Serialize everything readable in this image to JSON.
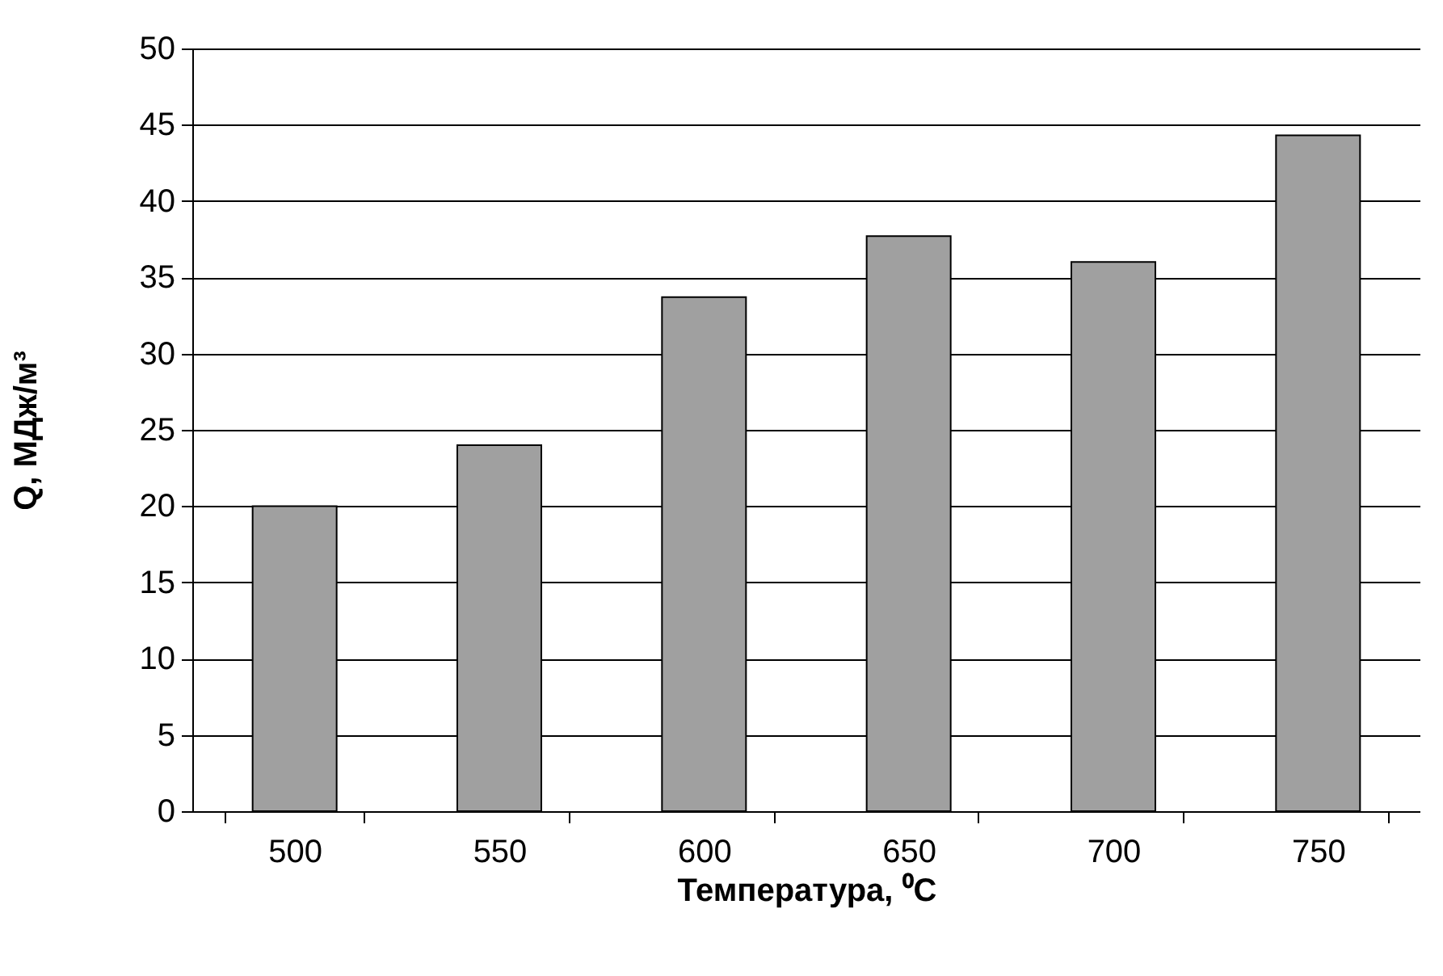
{
  "chart_data": {
    "type": "bar",
    "xlabel": "Температура, ⁰C",
    "ylabel": "Q, МДж/м³",
    "categories": [
      "500",
      "550",
      "600",
      "650",
      "700",
      "750"
    ],
    "values": [
      20,
      24,
      33.7,
      37.7,
      36,
      44.3
    ],
    "color": "#a0a0a0",
    "ylim": [
      0,
      50
    ],
    "yticks": [
      0,
      5,
      10,
      15,
      20,
      25,
      30,
      35,
      40,
      45,
      50
    ],
    "grid": "y"
  }
}
